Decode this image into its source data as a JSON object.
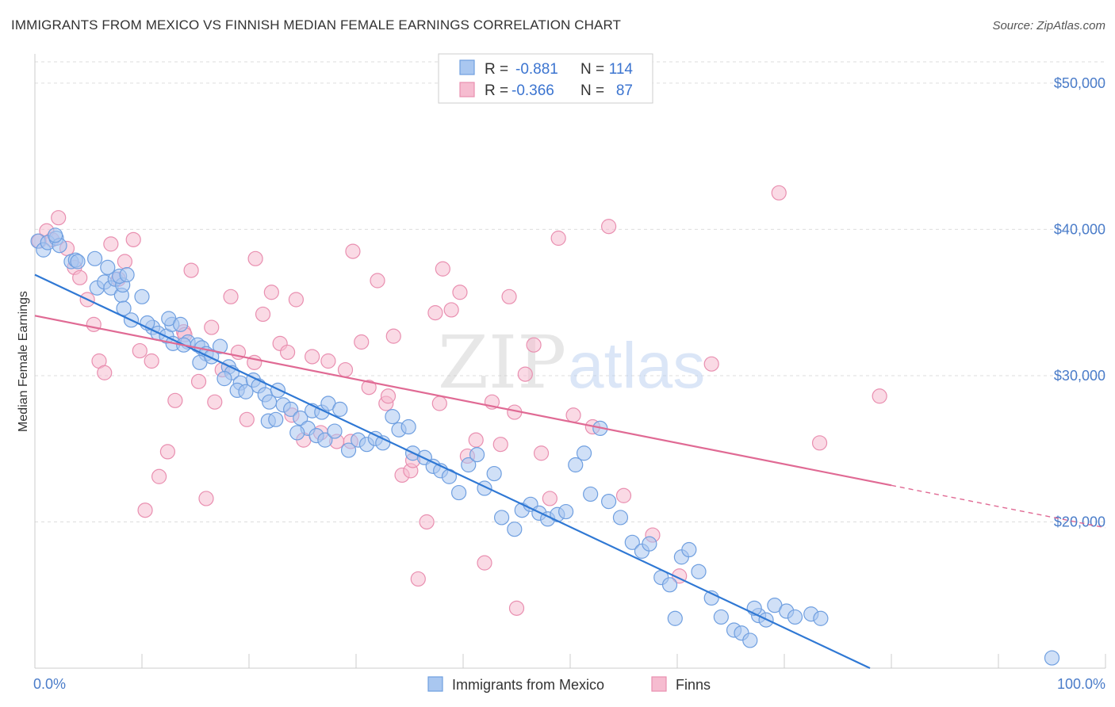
{
  "header": {
    "title": "IMMIGRANTS FROM MEXICO VS FINNISH MEDIAN FEMALE EARNINGS CORRELATION CHART",
    "source": "Source: ZipAtlas.com"
  },
  "watermark": {
    "zip": "ZIP",
    "atlas": "atlas"
  },
  "legend": {
    "rows": [
      {
        "r_label": "R =",
        "r_value": "-0.881",
        "n_label": "N =",
        "n_value": "114"
      },
      {
        "r_label": "R =",
        "r_value": "-0.366",
        "n_label": "N =",
        "n_value": "87"
      }
    ]
  },
  "bottom_legend": {
    "items": [
      {
        "label": "Immigrants from Mexico"
      },
      {
        "label": "Finns"
      }
    ]
  },
  "colors": {
    "blue_fill": "#a9c7f0",
    "blue_stroke": "#6f9fe0",
    "blue_line": "#2f78d4",
    "pink_fill": "#f6bcd0",
    "pink_stroke": "#e98fb0",
    "pink_line": "#e06a94",
    "axis_text": "#4a7cc9",
    "grid": "#dddddd"
  },
  "chart_data": {
    "type": "scatter",
    "title": "IMMIGRANTS FROM MEXICO VS FINNISH MEDIAN FEMALE EARNINGS CORRELATION CHART",
    "xlabel": "",
    "ylabel": "Median Female Earnings",
    "xlim": [
      0,
      100
    ],
    "ylim": [
      10000,
      52000
    ],
    "x_tick_labels": [
      "0.0%",
      "100.0%"
    ],
    "y_ticks": [
      20000,
      30000,
      40000,
      50000
    ],
    "y_tick_labels": [
      "$20,000",
      "$30,000",
      "$40,000",
      "$50,000"
    ],
    "grid": true,
    "legend_position": "top-center",
    "series": [
      {
        "name": "Immigrants from Mexico",
        "r": -0.881,
        "n": 114,
        "trend": {
          "x": [
            0,
            78
          ],
          "y": [
            36900,
            10000
          ]
        },
        "points": [
          [
            0.3,
            39200
          ],
          [
            0.8,
            38600
          ],
          [
            1.2,
            39100
          ],
          [
            2.0,
            39400
          ],
          [
            2.3,
            38900
          ],
          [
            1.9,
            39600
          ],
          [
            3.4,
            37800
          ],
          [
            3.8,
            37900
          ],
          [
            4.0,
            37800
          ],
          [
            5.6,
            38000
          ],
          [
            5.8,
            36000
          ],
          [
            6.8,
            37400
          ],
          [
            6.5,
            36400
          ],
          [
            7.1,
            36000
          ],
          [
            7.5,
            36600
          ],
          [
            8.1,
            35500
          ],
          [
            8.2,
            36200
          ],
          [
            7.9,
            36800
          ],
          [
            8.6,
            36900
          ],
          [
            10.0,
            35400
          ],
          [
            8.3,
            34600
          ],
          [
            9.0,
            33800
          ],
          [
            11.0,
            33300
          ],
          [
            10.5,
            33600
          ],
          [
            11.5,
            32900
          ],
          [
            12.3,
            32700
          ],
          [
            12.8,
            33500
          ],
          [
            12.5,
            33900
          ],
          [
            13.6,
            33500
          ],
          [
            12.9,
            32200
          ],
          [
            14.3,
            32300
          ],
          [
            13.9,
            32100
          ],
          [
            15.2,
            32100
          ],
          [
            15.6,
            31900
          ],
          [
            16.0,
            31500
          ],
          [
            15.4,
            30900
          ],
          [
            16.5,
            31300
          ],
          [
            17.3,
            32000
          ],
          [
            18.1,
            30600
          ],
          [
            18.4,
            30200
          ],
          [
            17.7,
            29800
          ],
          [
            19.2,
            29500
          ],
          [
            18.9,
            29000
          ],
          [
            19.7,
            28900
          ],
          [
            20.4,
            29700
          ],
          [
            20.9,
            29300
          ],
          [
            21.5,
            28700
          ],
          [
            21.9,
            28200
          ],
          [
            22.7,
            29000
          ],
          [
            23.2,
            28000
          ],
          [
            23.9,
            27700
          ],
          [
            24.8,
            27100
          ],
          [
            25.5,
            26400
          ],
          [
            26.3,
            25900
          ],
          [
            27.1,
            25600
          ],
          [
            21.8,
            26900
          ],
          [
            22.5,
            27000
          ],
          [
            24.5,
            26100
          ],
          [
            25.9,
            27600
          ],
          [
            26.8,
            27500
          ],
          [
            27.4,
            28100
          ],
          [
            28.5,
            27700
          ],
          [
            28.0,
            26200
          ],
          [
            29.3,
            24900
          ],
          [
            30.2,
            25600
          ],
          [
            31.0,
            25300
          ],
          [
            31.8,
            25700
          ],
          [
            32.5,
            25400
          ],
          [
            33.4,
            27200
          ],
          [
            34.0,
            26300
          ],
          [
            34.9,
            26500
          ],
          [
            35.3,
            24700
          ],
          [
            36.4,
            24400
          ],
          [
            37.2,
            23800
          ],
          [
            37.9,
            23500
          ],
          [
            38.7,
            23100
          ],
          [
            39.6,
            22000
          ],
          [
            40.5,
            23900
          ],
          [
            41.3,
            24600
          ],
          [
            42.0,
            22300
          ],
          [
            42.9,
            23300
          ],
          [
            43.6,
            20300
          ],
          [
            44.8,
            19500
          ],
          [
            45.5,
            20800
          ],
          [
            46.3,
            21200
          ],
          [
            47.1,
            20600
          ],
          [
            47.9,
            20200
          ],
          [
            48.8,
            20500
          ],
          [
            49.6,
            20700
          ],
          [
            50.5,
            23900
          ],
          [
            51.3,
            24700
          ],
          [
            51.9,
            21900
          ],
          [
            52.8,
            26400
          ],
          [
            53.6,
            21400
          ],
          [
            54.7,
            20300
          ],
          [
            55.8,
            18600
          ],
          [
            56.7,
            18000
          ],
          [
            57.4,
            18500
          ],
          [
            58.5,
            16200
          ],
          [
            59.3,
            15700
          ],
          [
            60.4,
            17600
          ],
          [
            61.1,
            18100
          ],
          [
            62.0,
            16600
          ],
          [
            63.2,
            14800
          ],
          [
            64.1,
            13500
          ],
          [
            65.3,
            12600
          ],
          [
            66.0,
            12400
          ],
          [
            66.8,
            11900
          ],
          [
            67.6,
            13600
          ],
          [
            68.3,
            13300
          ],
          [
            69.1,
            14300
          ],
          [
            70.2,
            13900
          ],
          [
            71.0,
            13500
          ],
          [
            72.5,
            13700
          ],
          [
            59.8,
            13400
          ],
          [
            67.2,
            14100
          ],
          [
            73.4,
            13400
          ],
          [
            95.0,
            10700
          ]
        ]
      },
      {
        "name": "Finns",
        "r": -0.366,
        "n": 87,
        "trend": {
          "x": [
            0,
            80
          ],
          "y": [
            34100,
            22500
          ]
        },
        "trend_dashed": {
          "x": [
            80,
            100
          ],
          "y": [
            22500,
            19600
          ]
        },
        "points": [
          [
            0.4,
            39200
          ],
          [
            1.1,
            39900
          ],
          [
            1.6,
            39300
          ],
          [
            2.2,
            40800
          ],
          [
            3.0,
            38700
          ],
          [
            3.7,
            37400
          ],
          [
            4.2,
            36700
          ],
          [
            4.9,
            35200
          ],
          [
            5.5,
            33500
          ],
          [
            6.0,
            31000
          ],
          [
            6.5,
            30200
          ],
          [
            7.1,
            39000
          ],
          [
            7.8,
            36600
          ],
          [
            8.4,
            37800
          ],
          [
            9.2,
            39300
          ],
          [
            9.8,
            31700
          ],
          [
            10.3,
            20800
          ],
          [
            10.9,
            31000
          ],
          [
            11.6,
            23100
          ],
          [
            12.4,
            24800
          ],
          [
            13.1,
            28300
          ],
          [
            13.9,
            33000
          ],
          [
            14.6,
            37200
          ],
          [
            15.3,
            29600
          ],
          [
            16.0,
            21600
          ],
          [
            16.8,
            28200
          ],
          [
            17.5,
            30400
          ],
          [
            18.3,
            35400
          ],
          [
            19.0,
            31600
          ],
          [
            19.8,
            27000
          ],
          [
            20.6,
            38000
          ],
          [
            21.3,
            34200
          ],
          [
            22.1,
            35700
          ],
          [
            22.9,
            32200
          ],
          [
            23.6,
            31600
          ],
          [
            24.4,
            35200
          ],
          [
            25.1,
            25600
          ],
          [
            25.9,
            31300
          ],
          [
            26.7,
            26100
          ],
          [
            27.4,
            31000
          ],
          [
            28.2,
            25500
          ],
          [
            29.0,
            30400
          ],
          [
            29.7,
            38500
          ],
          [
            30.5,
            32300
          ],
          [
            31.2,
            29200
          ],
          [
            32.0,
            36500
          ],
          [
            32.8,
            28100
          ],
          [
            33.5,
            32700
          ],
          [
            34.3,
            23200
          ],
          [
            35.1,
            23500
          ],
          [
            35.8,
            16100
          ],
          [
            36.6,
            20000
          ],
          [
            37.4,
            34300
          ],
          [
            38.1,
            37300
          ],
          [
            38.9,
            34500
          ],
          [
            39.7,
            35700
          ],
          [
            40.4,
            24500
          ],
          [
            41.2,
            25600
          ],
          [
            42.0,
            17200
          ],
          [
            42.7,
            28200
          ],
          [
            43.5,
            25300
          ],
          [
            44.3,
            35400
          ],
          [
            45.0,
            14100
          ],
          [
            45.8,
            30100
          ],
          [
            46.6,
            32100
          ],
          [
            47.3,
            24700
          ],
          [
            48.1,
            21600
          ],
          [
            48.9,
            39400
          ],
          [
            50.3,
            27300
          ],
          [
            52.1,
            26500
          ],
          [
            53.6,
            40200
          ],
          [
            55.0,
            21800
          ],
          [
            57.7,
            19100
          ],
          [
            60.2,
            16300
          ],
          [
            63.2,
            30800
          ],
          [
            69.5,
            42500
          ],
          [
            73.3,
            25400
          ],
          [
            78.9,
            28600
          ],
          [
            14.0,
            32800
          ],
          [
            16.5,
            33300
          ],
          [
            20.5,
            30900
          ],
          [
            24.0,
            27300
          ],
          [
            29.5,
            25500
          ],
          [
            33.0,
            28600
          ],
          [
            37.8,
            28100
          ],
          [
            44.8,
            27500
          ],
          [
            35.3,
            24200
          ]
        ]
      }
    ]
  }
}
